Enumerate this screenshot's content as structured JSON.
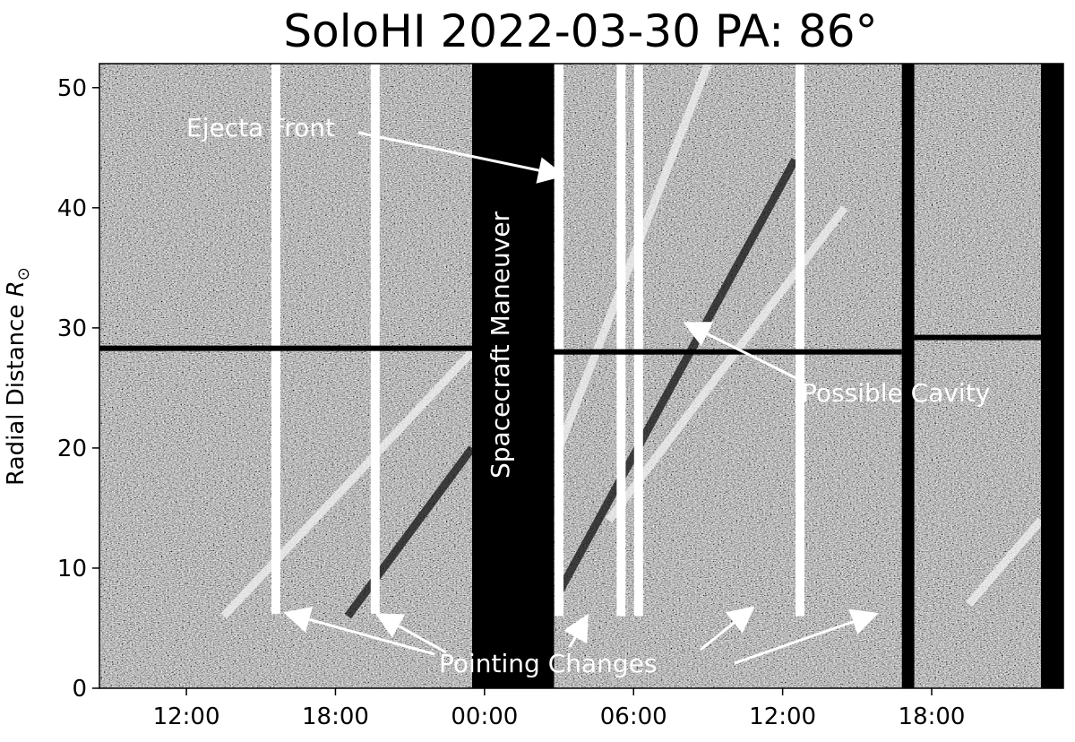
{
  "chart_data": {
    "type": "heatmap",
    "title": "SoloHI 2022-03-30 PA: 86°",
    "ylabel_main": "Radial Distance ",
    "ylabel_unit": "R",
    "ylabel_sub": "⊙",
    "y_ticks": [
      "0",
      "10",
      "20",
      "30",
      "40",
      "50"
    ],
    "y_tick_values": [
      0,
      10,
      20,
      30,
      40,
      50
    ],
    "ylim": [
      0,
      52
    ],
    "x_ticks": [
      "12:00",
      "18:00",
      "00:00",
      "06:00",
      "12:00",
      "18:00"
    ],
    "x_tick_hours": [
      12,
      18,
      24,
      30,
      36,
      42
    ],
    "xlim_hours": [
      8.5,
      47.3
    ],
    "gaps": [
      {
        "label": "Spacecraft Maneuver",
        "start_hour": 23.5,
        "end_hour": 26.8
      },
      {
        "start_hour": 40.8,
        "end_hour": 41.3
      },
      {
        "start_hour": 46.4,
        "end_hour": 47.3
      }
    ],
    "segments": [
      {
        "start_hour": 8.5,
        "end_hour": 23.5,
        "rmin_lower": 6.2,
        "rsplit": 28.3
      },
      {
        "start_hour": 26.8,
        "end_hour": 40.8,
        "rmin_lower": 6.0,
        "rsplit": 28.0
      },
      {
        "start_hour": 41.3,
        "end_hour": 46.4,
        "rmin_lower": 7.0,
        "rsplit": 29.2
      }
    ],
    "vertical_lines_hours": [
      15.6,
      19.6,
      27.0,
      29.5,
      30.2,
      36.7
    ],
    "tracks": [
      {
        "start_hour": 13.5,
        "end_hour": 23.5,
        "r_start": 6,
        "r_end": 28,
        "tone": "bright"
      },
      {
        "start_hour": 18.5,
        "end_hour": 23.5,
        "r_start": 6,
        "r_end": 20,
        "tone": "dark"
      },
      {
        "start_hour": 27.0,
        "end_hour": 33.0,
        "r_start": 20,
        "r_end": 52,
        "tone": "bright"
      },
      {
        "start_hour": 27.0,
        "end_hour": 36.5,
        "r_start": 8,
        "r_end": 44,
        "tone": "dark"
      },
      {
        "start_hour": 29.0,
        "end_hour": 38.5,
        "r_start": 14,
        "r_end": 40,
        "tone": "bright"
      },
      {
        "start_hour": 43.5,
        "end_hour": 46.4,
        "r_start": 7,
        "r_end": 14,
        "tone": "bright"
      }
    ],
    "annotations": {
      "ejecta_front": "Ejecta Front",
      "possible_cavity": "Possible Cavity",
      "pointing_changes": "Pointing Changes",
      "maneuver": "Spacecraft Maneuver"
    }
  }
}
